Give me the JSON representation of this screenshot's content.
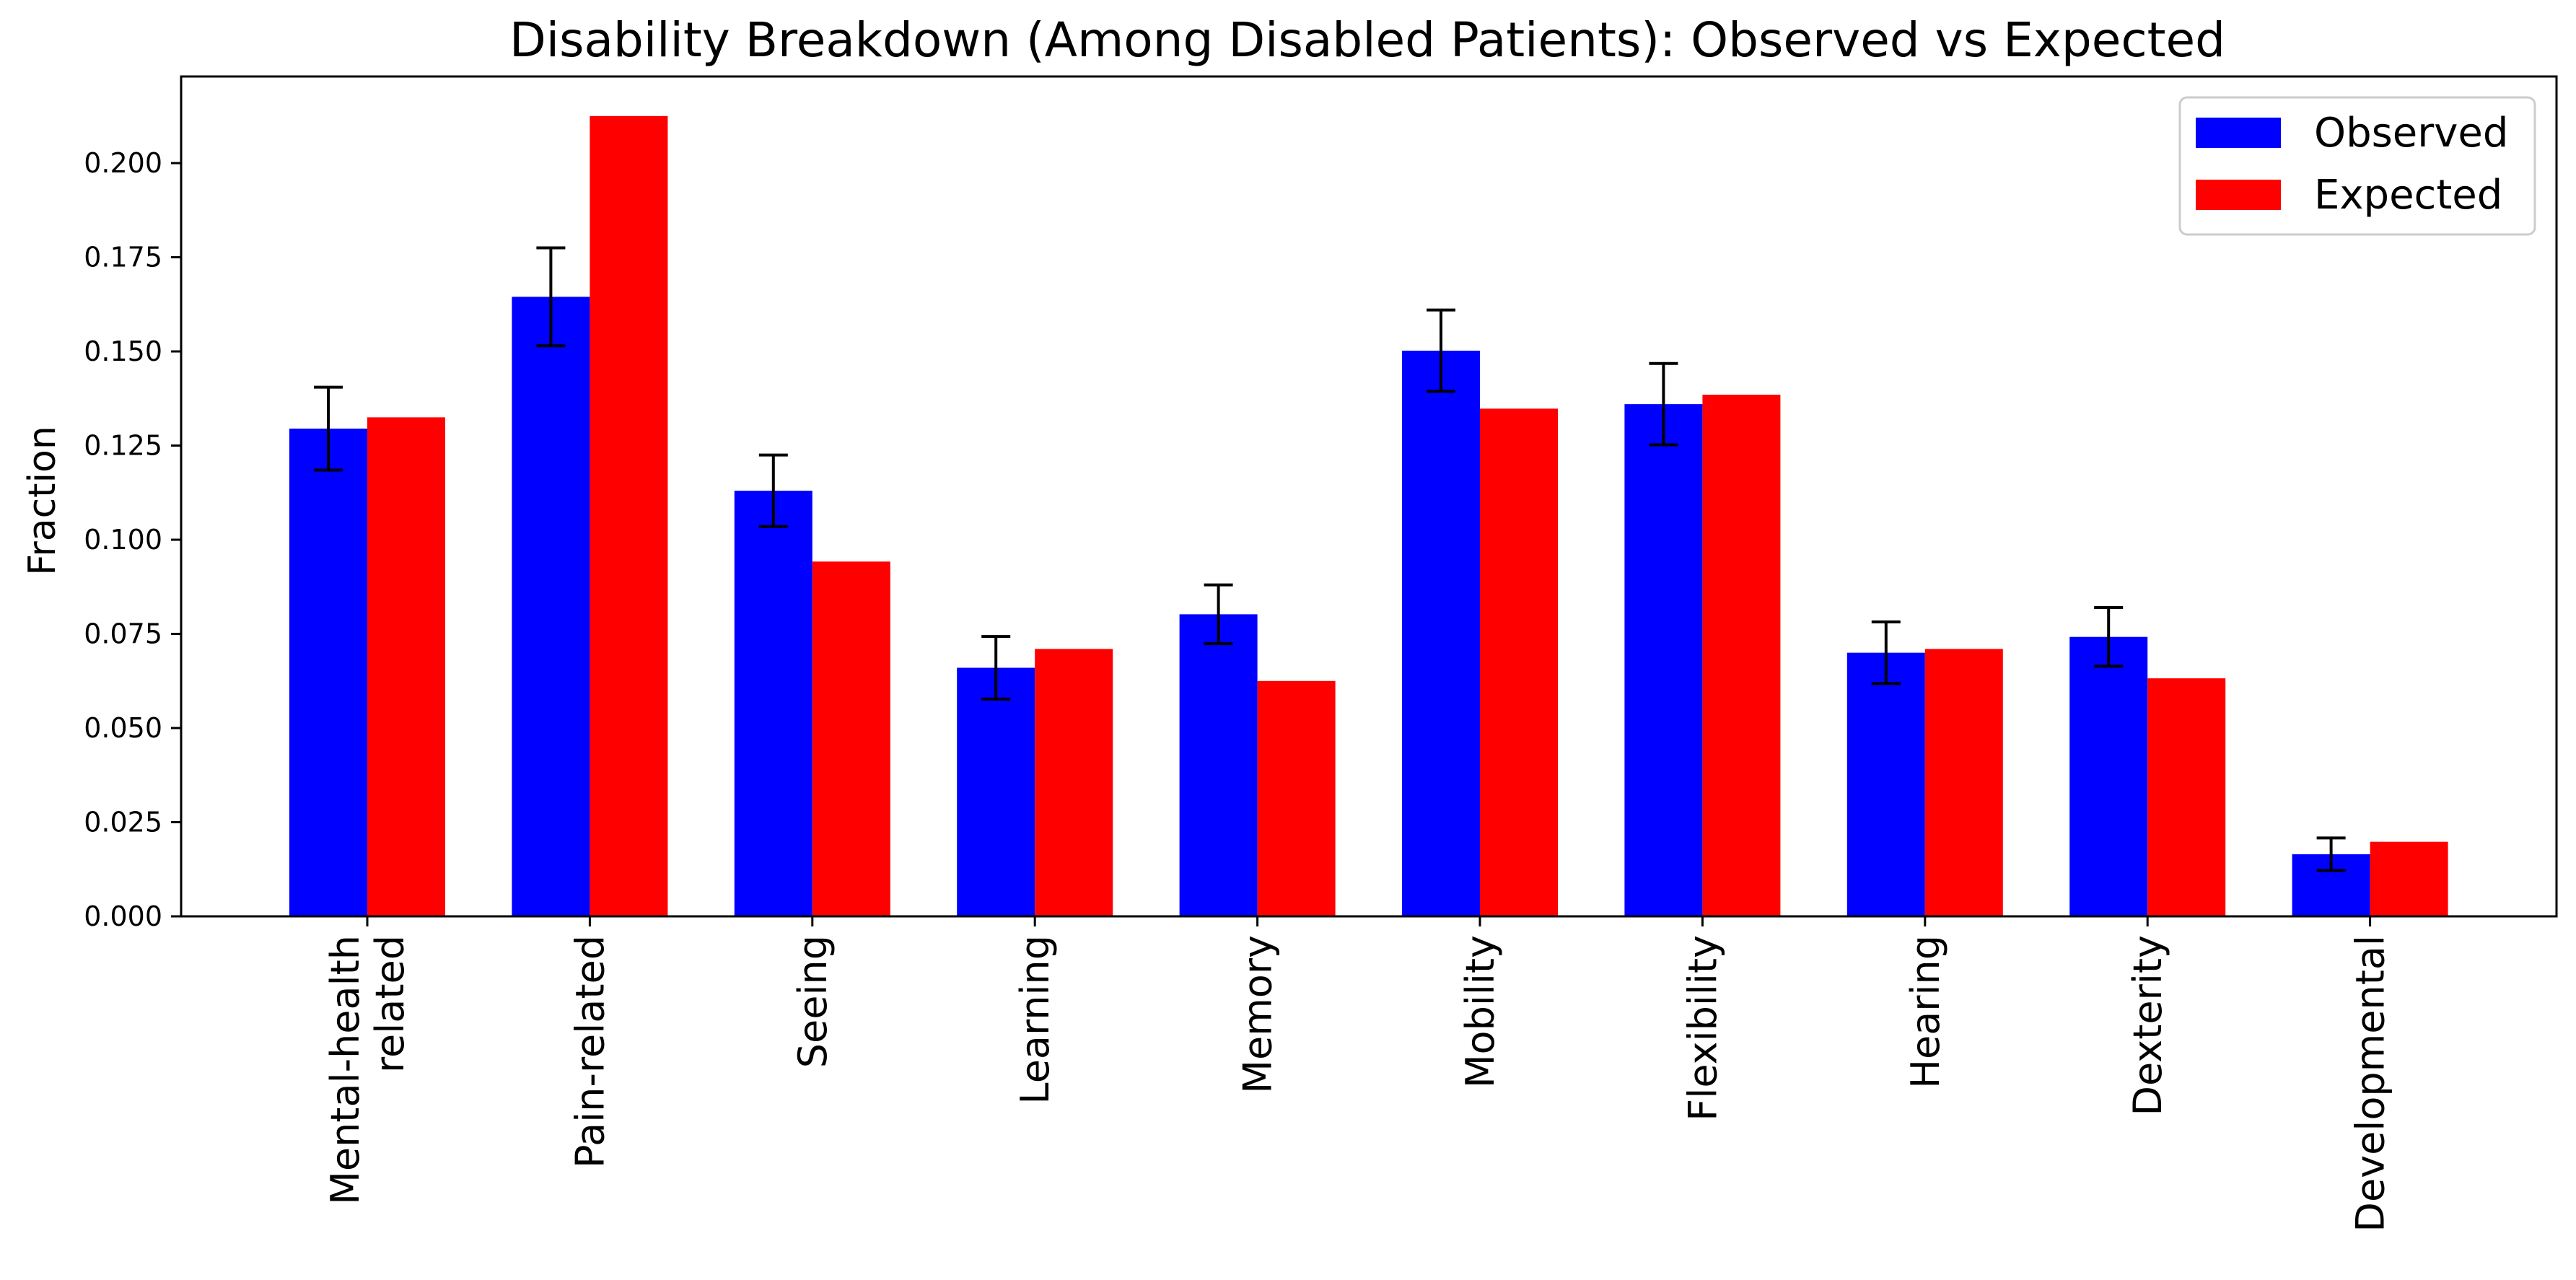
{
  "chart_data": {
    "type": "bar",
    "title": "Disability Breakdown (Among Disabled Patients): Observed vs Expected",
    "xlabel": "",
    "ylabel": "Fraction",
    "ylim": [
      0,
      0.223
    ],
    "yticks": [
      "0.000",
      "0.025",
      "0.050",
      "0.075",
      "0.100",
      "0.125",
      "0.150",
      "0.175",
      "0.200"
    ],
    "categories": [
      [
        "Mental-health",
        "related"
      ],
      [
        "Pain-related"
      ],
      [
        "Seeing"
      ],
      [
        "Learning"
      ],
      [
        "Memory"
      ],
      [
        "Mobility"
      ],
      [
        "Flexibility"
      ],
      [
        "Hearing"
      ],
      [
        "Dexterity"
      ],
      [
        "Developmental"
      ]
    ],
    "series": [
      {
        "name": "Observed",
        "color": "#0000ff",
        "values": [
          0.1295,
          0.1645,
          0.113,
          0.066,
          0.0802,
          0.1502,
          0.136,
          0.07,
          0.0742,
          0.0165
        ],
        "errors": [
          0.011,
          0.013,
          0.0095,
          0.0083,
          0.0078,
          0.0108,
          0.0108,
          0.0082,
          0.0078,
          0.0043
        ]
      },
      {
        "name": "Expected",
        "color": "#ff0000",
        "values": [
          0.1325,
          0.2125,
          0.0942,
          0.071,
          0.0625,
          0.1348,
          0.1385,
          0.071,
          0.0632,
          0.0198
        ]
      }
    ],
    "legend": "top-right",
    "grid": false
  }
}
